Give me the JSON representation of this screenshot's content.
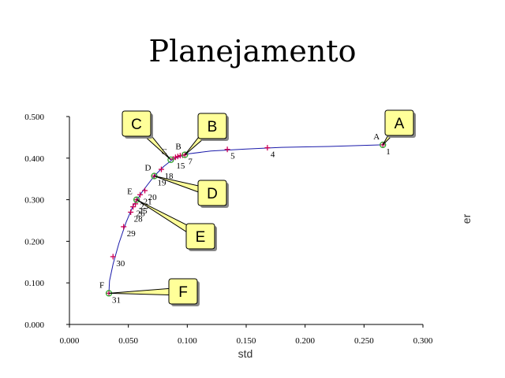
{
  "chart_data": {
    "type": "line",
    "title": "Planejamento",
    "xlabel": "std",
    "ylabel": "er",
    "xlim": [
      0.0,
      0.3
    ],
    "ylim": [
      0.0,
      0.5
    ],
    "x_ticks": [
      "0.000",
      "0.050",
      "0.100",
      "0.150",
      "0.200",
      "0.250",
      "0.300"
    ],
    "y_ticks": [
      "0.000",
      "0.100",
      "0.200",
      "0.300",
      "0.400",
      "0.500"
    ],
    "grid": false,
    "colors": {
      "curve": "#1a1aaa",
      "marker": "#cc0055",
      "highlight": "#33aa33",
      "callout_fill": "#ffff99"
    },
    "curve": [
      {
        "x": 0.0335,
        "y": 0.075
      },
      {
        "x": 0.034,
        "y": 0.105
      },
      {
        "x": 0.037,
        "y": 0.145
      },
      {
        "x": 0.042,
        "y": 0.195
      },
      {
        "x": 0.048,
        "y": 0.245
      },
      {
        "x": 0.054,
        "y": 0.285
      },
      {
        "x": 0.062,
        "y": 0.32
      },
      {
        "x": 0.072,
        "y": 0.357
      },
      {
        "x": 0.08,
        "y": 0.38
      },
      {
        "x": 0.088,
        "y": 0.398
      },
      {
        "x": 0.1,
        "y": 0.41
      },
      {
        "x": 0.12,
        "y": 0.417
      },
      {
        "x": 0.15,
        "y": 0.422
      },
      {
        "x": 0.18,
        "y": 0.426
      },
      {
        "x": 0.22,
        "y": 0.428
      },
      {
        "x": 0.266,
        "y": 0.432
      }
    ],
    "points": [
      {
        "label": "1",
        "x": 0.266,
        "y": 0.432
      },
      {
        "label": "4",
        "x": 0.168,
        "y": 0.425
      },
      {
        "label": "5",
        "x": 0.134,
        "y": 0.421
      },
      {
        "label": "7",
        "x": 0.098,
        "y": 0.408
      },
      {
        "label": "15",
        "x": 0.088,
        "y": 0.398
      },
      {
        "label": "18",
        "x": 0.078,
        "y": 0.373
      },
      {
        "label": "19",
        "x": 0.072,
        "y": 0.357
      },
      {
        "label": "20",
        "x": 0.064,
        "y": 0.322
      },
      {
        "label": "21",
        "x": 0.06,
        "y": 0.312
      },
      {
        "label": "23",
        "x": 0.057,
        "y": 0.3
      },
      {
        "label": "25",
        "x": 0.056,
        "y": 0.29
      },
      {
        "label": "26",
        "x": 0.054,
        "y": 0.283
      },
      {
        "label": "28",
        "x": 0.052,
        "y": 0.27
      },
      {
        "label": "29",
        "x": 0.046,
        "y": 0.235
      },
      {
        "label": "30",
        "x": 0.037,
        "y": 0.163
      },
      {
        "label": "31",
        "x": 0.0335,
        "y": 0.075
      }
    ],
    "extra_markers": [
      {
        "x": 0.09,
        "y": 0.402
      },
      {
        "x": 0.092,
        "y": 0.404
      },
      {
        "x": 0.094,
        "y": 0.406
      },
      {
        "x": 0.096,
        "y": 0.407
      }
    ],
    "highlights": [
      {
        "label": "A",
        "x": 0.266,
        "y": 0.432
      },
      {
        "label": "B",
        "x": 0.098,
        "y": 0.408
      },
      {
        "label": "C",
        "x": 0.086,
        "y": 0.396
      },
      {
        "label": "D",
        "x": 0.072,
        "y": 0.357
      },
      {
        "label": "E",
        "x": 0.057,
        "y": 0.3
      },
      {
        "label": "F",
        "x": 0.0335,
        "y": 0.075
      }
    ],
    "callouts": [
      {
        "label": "A",
        "target": "A"
      },
      {
        "label": "B",
        "target": "B"
      },
      {
        "label": "C",
        "target": "C"
      },
      {
        "label": "D",
        "target": "D"
      },
      {
        "label": "E",
        "target": "E"
      },
      {
        "label": "F",
        "target": "F"
      }
    ]
  }
}
